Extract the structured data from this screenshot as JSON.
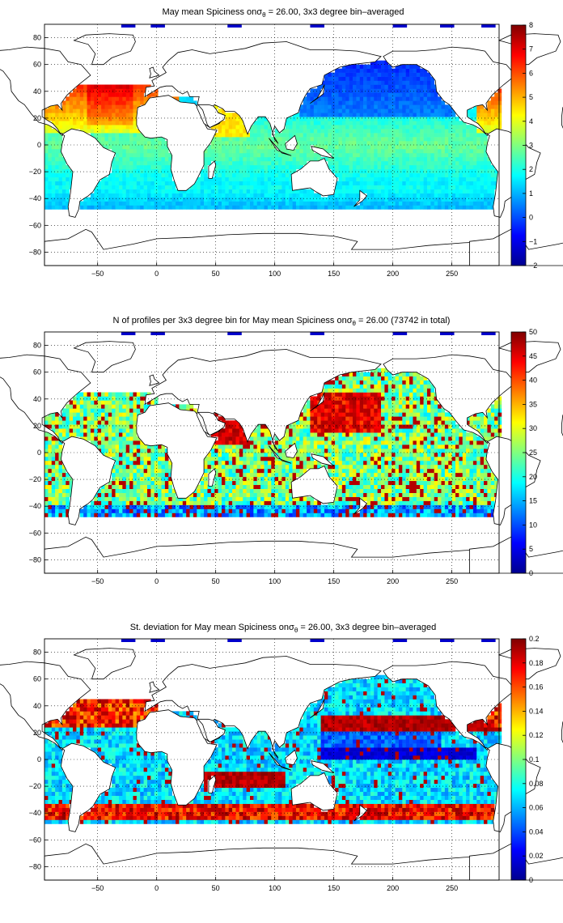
{
  "figure": {
    "panels": [
      {
        "title_prefix": "May mean Spiciness onσ",
        "title_sub": "θ",
        "title_suffix": " = 26.00, 3x3 degree bin–averaged",
        "colorbar_ticks": [
          "8",
          "7",
          "6",
          "5",
          "4",
          "3",
          "2",
          "1",
          "0",
          "−1",
          "−2"
        ],
        "x_ticks": [
          "−50",
          "0",
          "50",
          "100",
          "150",
          "200",
          "250"
        ],
        "y_ticks": [
          "80",
          "60",
          "40",
          "20",
          "0",
          "−20",
          "−40",
          "−60",
          "−80"
        ]
      },
      {
        "title_prefix": "N of profiles per 3x3 degree bin for May mean Spiciness onσ",
        "title_sub": "θ",
        "title_suffix": " = 26.00 (73742 in total)",
        "colorbar_ticks": [
          "50",
          "45",
          "40",
          "35",
          "30",
          "25",
          "20",
          "15",
          "10",
          "5",
          "0"
        ],
        "x_ticks": [
          "−50",
          "0",
          "50",
          "100",
          "150",
          "200",
          "250"
        ],
        "y_ticks": [
          "80",
          "60",
          "40",
          "20",
          "0",
          "−20",
          "−40",
          "−60",
          "−80"
        ]
      },
      {
        "title_prefix": "St. deviation for May mean Spiciness onσ",
        "title_sub": "θ",
        "title_suffix": " = 26.00, 3x3 degree bin–averaged",
        "colorbar_ticks": [
          "0.2",
          "0.18",
          "0.16",
          "0.14",
          "0.12",
          "0.1",
          "0.08",
          "0.06",
          "0.04",
          "0.02",
          "0"
        ],
        "x_ticks": [
          "−50",
          "0",
          "50",
          "100",
          "150",
          "200",
          "250"
        ],
        "y_ticks": [
          "80",
          "60",
          "40",
          "20",
          "0",
          "−20",
          "−40",
          "−60",
          "−80"
        ]
      }
    ]
  },
  "chart_data": [
    {
      "type": "heatmap",
      "title": "May mean Spiciness on σθ = 26.00, 3x3 degree bin–averaged",
      "x_range": [
        -95,
        290
      ],
      "y_range": [
        -90,
        90
      ],
      "x_ticks": [
        -50,
        0,
        50,
        100,
        150,
        200,
        250
      ],
      "y_ticks": [
        -80,
        -60,
        -40,
        -20,
        0,
        20,
        40,
        60,
        80
      ],
      "colorbar_range": [
        -2,
        8
      ],
      "colormap": "jet",
      "grid": "dotted",
      "field": "spiciness",
      "bin_size_deg": 3
    },
    {
      "type": "heatmap",
      "title": "N of profiles per 3x3 degree bin for May mean Spiciness on σθ = 26.00 (73742 in total)",
      "x_range": [
        -95,
        290
      ],
      "y_range": [
        -90,
        90
      ],
      "x_ticks": [
        -50,
        0,
        50,
        100,
        150,
        200,
        250
      ],
      "y_ticks": [
        -80,
        -60,
        -40,
        -20,
        0,
        20,
        40,
        60,
        80
      ],
      "colorbar_range": [
        0,
        50
      ],
      "colormap": "jet",
      "grid": "dotted",
      "field": "count",
      "total_profiles": 73742,
      "bin_size_deg": 3
    },
    {
      "type": "heatmap",
      "title": "St. deviation for May mean Spiciness on σθ = 26.00, 3x3 degree bin–averaged",
      "x_range": [
        -95,
        290
      ],
      "y_range": [
        -90,
        90
      ],
      "x_ticks": [
        -50,
        0,
        50,
        100,
        150,
        200,
        250
      ],
      "y_ticks": [
        -80,
        -60,
        -40,
        -20,
        0,
        20,
        40,
        60,
        80
      ],
      "colorbar_range": [
        0,
        0.2
      ],
      "colormap": "jet",
      "grid": "dotted",
      "field": "std",
      "bin_size_deg": 3
    }
  ]
}
